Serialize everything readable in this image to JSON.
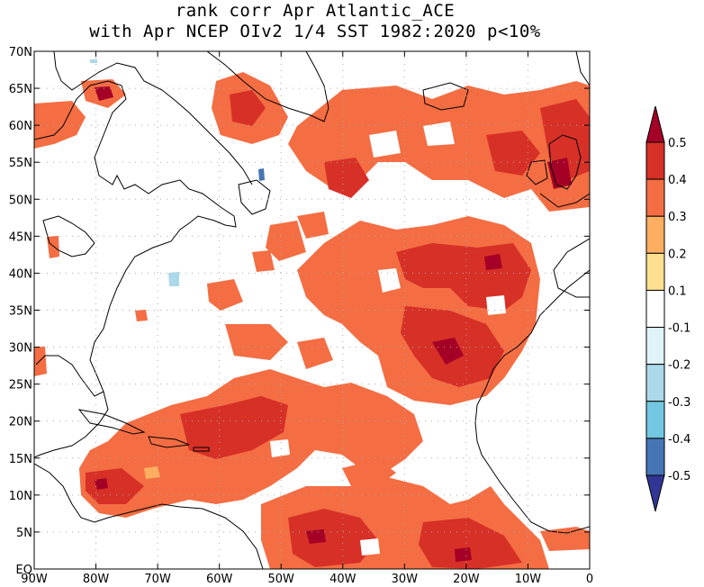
{
  "title": {
    "line1": "rank corr Apr  Atlantic_ACE",
    "line2": "with Apr NCEP OIv2 1/4 SST 1982:2020 p<10%"
  },
  "map": {
    "lon_range": [
      -90,
      0
    ],
    "lat_range": [
      0,
      70
    ],
    "lon_ticks": [
      "90W",
      "80W",
      "70W",
      "60W",
      "50W",
      "40W",
      "30W",
      "20W",
      "10W",
      "0"
    ],
    "lat_ticks": [
      "EQ",
      "5N",
      "10N",
      "15N",
      "20N",
      "25N",
      "30N",
      "35N",
      "40N",
      "45N",
      "50N",
      "55N",
      "60N",
      "65N",
      "70N"
    ],
    "gridlines": true,
    "land_color": "#ffffff",
    "coast_color": "#000000"
  },
  "colorbar": {
    "labels": [
      "0.5",
      "0.4",
      "0.3",
      "0.2",
      "0.1",
      "-0.1",
      "-0.2",
      "-0.3",
      "-0.4",
      "-0.5"
    ],
    "colors": [
      "#a50026",
      "#d73027",
      "#f46d43",
      "#fdae61",
      "#fee090",
      "#ffffff",
      "#e0f3f8",
      "#abd9e9",
      "#74c7e0",
      "#4575b4",
      "#313695"
    ]
  },
  "correlation_field": {
    "colors": {
      "c03": "#f46d43",
      "c04": "#d73027",
      "c05": "#a50026",
      "c02": "#fdae61",
      "n02": "#abd9e9",
      "n04": "#4575b4"
    }
  }
}
